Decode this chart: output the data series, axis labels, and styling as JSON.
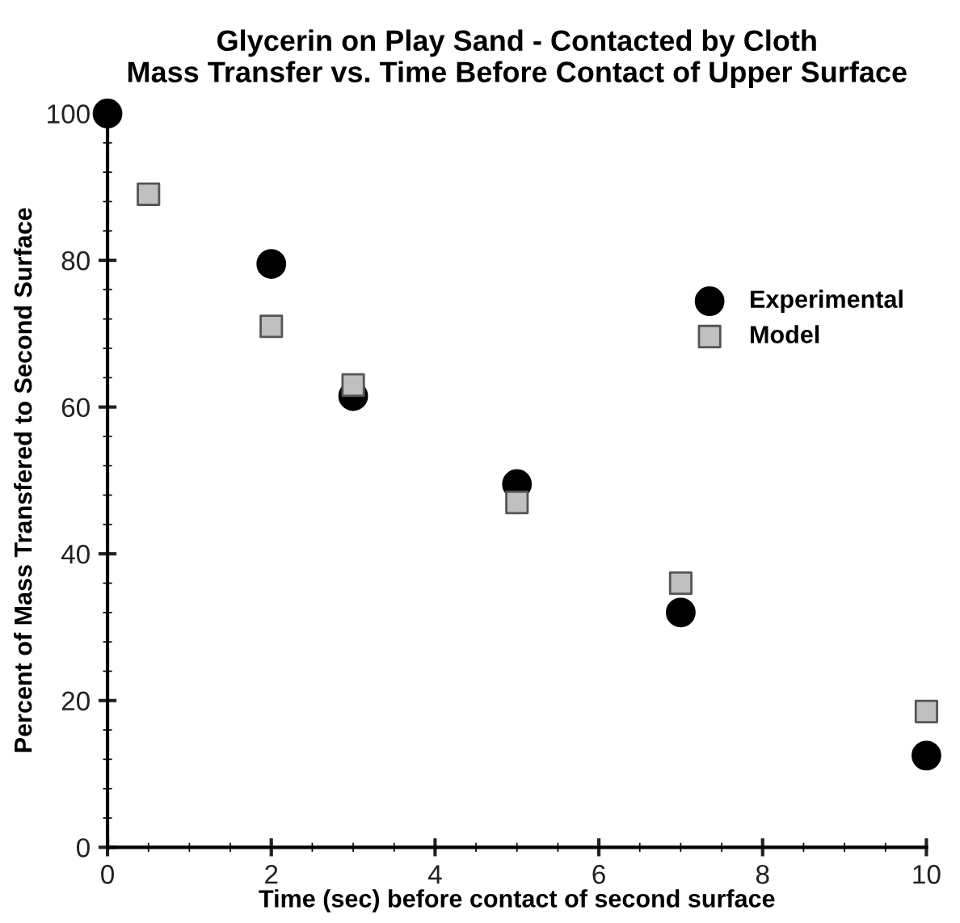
{
  "chart_data": {
    "type": "scatter",
    "title": "Glycerin on Play Sand - Contacted by Cloth\nMass Transfer vs. Time Before Contact of Upper Surface",
    "xlabel": "Time (sec) before contact of second surface",
    "ylabel": "Percent of Mass Transfered to Second Surface",
    "series": [
      {
        "name": "Experimental",
        "color": "#000000",
        "marker": "circle",
        "x": [
          0,
          2,
          3,
          5,
          7,
          10
        ],
        "values": [
          100,
          79.5,
          61.5,
          49.5,
          32,
          12.5
        ]
      },
      {
        "name": "Model",
        "color": "#c0c0c0",
        "marker": "square",
        "x": [
          0.5,
          2,
          3,
          5,
          7,
          10
        ],
        "values": [
          89,
          71,
          63,
          47,
          36,
          18.5
        ]
      }
    ],
    "xlim": [
      0,
      10
    ],
    "ylim": [
      0,
      100
    ],
    "xticks": [
      0,
      2,
      4,
      6,
      8,
      10
    ],
    "yticks": [
      0,
      20,
      40,
      60,
      80,
      100
    ],
    "grid": false,
    "legend": "right"
  }
}
